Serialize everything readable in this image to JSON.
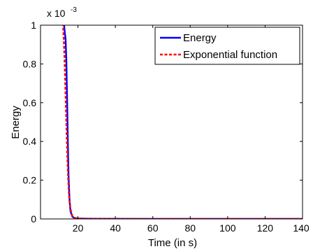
{
  "chart_data": {
    "type": "line",
    "xlabel": "Time (in s)",
    "ylabel": "Energy",
    "y_exponent_label": "x 10",
    "y_exponent_power": "-3",
    "xlim": [
      0,
      140
    ],
    "ylim": [
      0,
      0.001
    ],
    "x_ticks": [
      20,
      40,
      60,
      80,
      100,
      120,
      140
    ],
    "x_tick_labels": [
      "20",
      "40",
      "60",
      "80",
      "100",
      "120",
      "140"
    ],
    "y_ticks": [
      0,
      0.0002,
      0.0004,
      0.0006,
      0.0008,
      0.001
    ],
    "y_tick_labels": [
      "0",
      "0.2",
      "0.4",
      "0.6",
      "0.8",
      "1"
    ],
    "grid": false,
    "legend_position": "top-right",
    "series": [
      {
        "name": "Energy",
        "color": "#0000ff",
        "style": "solid",
        "x": [
          12.5,
          13.0,
          13.4,
          13.8,
          14.2,
          14.6,
          15.0,
          15.5,
          16.0,
          17.0,
          18.0,
          20.0,
          25.0,
          40.0,
          60.0,
          80.0,
          100.0,
          120.0,
          140.0
        ],
        "y": [
          0.00101,
          0.00096,
          0.00093,
          0.00082,
          0.00062,
          0.0004,
          0.00022,
          0.0001,
          4e-05,
          1.2e-05,
          5e-06,
          2e-06,
          1e-06,
          5e-07,
          3e-07,
          2e-07,
          2e-07,
          2e-07,
          2e-07
        ]
      },
      {
        "name": "Exponential function",
        "color": "#ff0000",
        "style": "dashed",
        "x": [
          12.0,
          12.4,
          12.8,
          13.2,
          13.6,
          14.0,
          14.4,
          14.8,
          15.2,
          15.6,
          16.0,
          17.0,
          18.0,
          20.0,
          25.0,
          40.0,
          60.0,
          80.0,
          100.0,
          120.0,
          140.0
        ],
        "y": [
          0.00101,
          0.00094,
          0.00084,
          0.00071,
          0.00057,
          0.00043,
          0.00031,
          0.00021,
          0.00013,
          8e-05,
          5e-05,
          1.5e-05,
          6e-06,
          2e-06,
          1e-06,
          5e-07,
          3e-07,
          2e-07,
          2e-07,
          2e-07,
          2e-07
        ]
      }
    ]
  }
}
